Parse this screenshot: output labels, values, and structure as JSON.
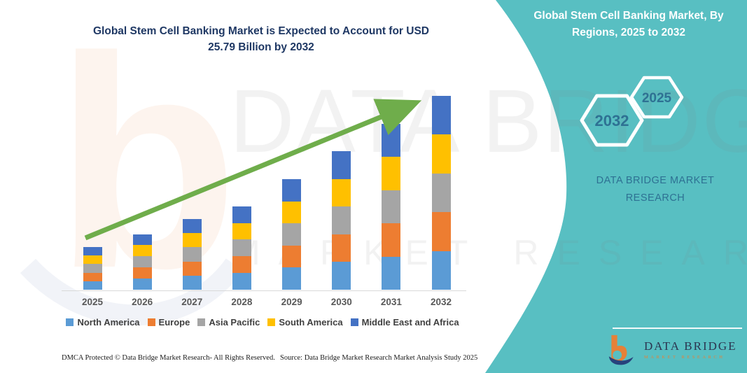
{
  "header": {
    "main_title_line1": "Global Stem Cell Banking Market is Expected to Account for USD",
    "main_title_line2": "25.79 Billion by 2032",
    "panel_title": "Global Stem Cell Banking Market, By Regions, 2025 to 2032"
  },
  "panel": {
    "hexagon_large_label": "2032",
    "hexagon_small_label": "2025",
    "brand_line1": "DATA BRIDGE MARKET",
    "brand_line2": "RESEARCH",
    "logo_title": "DATA BRIDGE",
    "logo_subtitle": "MARKET RESEARCH"
  },
  "watermark": {
    "line1": "DATA BRIDGE",
    "line2": "MARKET RESEARCH",
    "letter_b": "b"
  },
  "footer": {
    "left": "DMCA Protected © Data Bridge Market Research-  All Rights Reserved.",
    "right": "Source: Data Bridge Market Research  Market Analysis Study 2025"
  },
  "colors": {
    "teal_panel": "#58BFC2",
    "title_navy": "#1F3864",
    "axis_label_gray": "#595959",
    "legend_text": "#404040",
    "arrow_green": "#6FAD4B",
    "hexagon_text": "#2E7193",
    "logo_orange": "#E58138",
    "logo_navy": "#27427C"
  },
  "chart_data": {
    "type": "bar",
    "stacked": true,
    "title": "Global Stem Cell Banking Market is Expected to Account for USD 25.79 Billion by 2032",
    "unit": "USD Billion",
    "xlabel": "",
    "ylabel": "",
    "y_axis_visible": false,
    "gridlines": false,
    "legend_position": "bottom",
    "annotation": "upward green trend arrow from 2025 to 2032",
    "categories": [
      "2025",
      "2026",
      "2027",
      "2028",
      "2029",
      "2030",
      "2031",
      "2032"
    ],
    "series": [
      {
        "name": "North America",
        "color": "#5B9BD5",
        "values": [
          1.14,
          1.48,
          1.88,
          2.22,
          2.94,
          3.68,
          4.42,
          5.16
        ]
      },
      {
        "name": "Europe",
        "color": "#ED7D31",
        "values": [
          1.14,
          1.48,
          1.88,
          2.22,
          2.94,
          3.68,
          4.42,
          5.16
        ]
      },
      {
        "name": "Asia Pacific",
        "color": "#A5A5A5",
        "values": [
          1.14,
          1.48,
          1.88,
          2.22,
          2.94,
          3.68,
          4.42,
          5.16
        ]
      },
      {
        "name": "South America",
        "color": "#FFC000",
        "values": [
          1.14,
          1.48,
          1.88,
          2.22,
          2.94,
          3.68,
          4.42,
          5.16
        ]
      },
      {
        "name": "Middle East and Africa",
        "color": "#4472C4",
        "values": [
          1.14,
          1.48,
          1.88,
          2.22,
          2.94,
          3.68,
          4.42,
          5.16
        ]
      }
    ],
    "estimated_totals_usd_billion": [
      5.7,
      7.4,
      9.4,
      11.1,
      14.7,
      18.4,
      22.1,
      25.79
    ],
    "stated_final_value_usd_billion": 25.79
  }
}
